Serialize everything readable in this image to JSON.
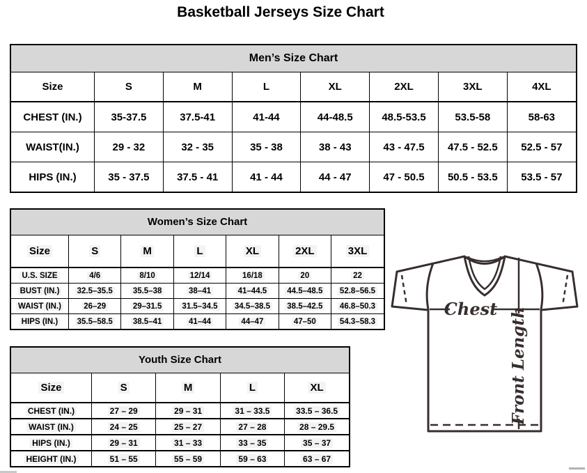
{
  "page_title": "Basketball Jerseys Size Chart",
  "tables": {
    "men": {
      "title": "Men’s Size Chart",
      "size_header": "Size",
      "columns": [
        "S",
        "M",
        "L",
        "XL",
        "2XL",
        "3XL",
        "4XL"
      ],
      "rows": [
        {
          "label": "CHEST (IN.)",
          "values": [
            "35-37.5",
            "37.5-41",
            "41-44",
            "44-48.5",
            "48.5-53.5",
            "53.5-58",
            "58-63"
          ]
        },
        {
          "label": "WAIST(IN.)",
          "values": [
            "29 - 32",
            "32 - 35",
            "35 - 38",
            "38 - 43",
            "43 - 47.5",
            "47.5 - 52.5",
            "52.5 - 57"
          ]
        },
        {
          "label": "HIPS (IN.)",
          "values": [
            "35 - 37.5",
            "37.5 - 41",
            "41 - 44",
            "44 - 47",
            "47 - 50.5",
            "50.5 - 53.5",
            "53.5 - 57"
          ]
        }
      ]
    },
    "women": {
      "title": "Women’s Size Chart",
      "size_header": "Size",
      "columns": [
        "S",
        "M",
        "L",
        "XL",
        "2XL",
        "3XL"
      ],
      "rows": [
        {
          "label": "U.S. SIZE",
          "values": [
            "4/6",
            "8/10",
            "12/14",
            "16/18",
            "20",
            "22"
          ]
        },
        {
          "label": "BUST (IN.)",
          "values": [
            "32.5–35.5",
            "35.5–38",
            "38–41",
            "41–44.5",
            "44.5–48.5",
            "52.8–56.5"
          ]
        },
        {
          "label": "WAIST (IN.)",
          "values": [
            "26–29",
            "29–31.5",
            "31.5–34.5",
            "34.5–38.5",
            "38.5–42.5",
            "46.8–50.3"
          ]
        },
        {
          "label": "HIPS (IN.)",
          "values": [
            "35.5–58.5",
            "38.5–41",
            "41–44",
            "44–47",
            "47–50",
            "54.3–58.3"
          ]
        }
      ]
    },
    "youth": {
      "title": "Youth Size Chart",
      "size_header": "Size",
      "columns": [
        "S",
        "M",
        "L",
        "XL"
      ],
      "rows": [
        {
          "label": "CHEST (IN.)",
          "values": [
            "27 – 29",
            "29 – 31",
            "31 – 33.5",
            "33.5 – 36.5"
          ]
        },
        {
          "label": "WAIST (IN.)",
          "values": [
            "24 – 25",
            "25 – 27",
            "27 – 28",
            "28 – 29.5"
          ]
        },
        {
          "label": "HIPS (IN.)",
          "values": [
            "29 – 31",
            "31 – 33",
            "33 – 35",
            "35 – 37"
          ]
        },
        {
          "label": "HEIGHT (IN.)",
          "values": [
            "51 – 55",
            "55 – 59",
            "59 – 63",
            "63 – 67"
          ]
        }
      ]
    }
  },
  "diagram": {
    "chest_label": "Chest",
    "front_length_label": "Front Length"
  },
  "colors": {
    "header_band": "#d7d7d7",
    "border": "#000000",
    "diagram_stroke": "#372e2e",
    "cell_highlight": "#f3f3f3"
  }
}
